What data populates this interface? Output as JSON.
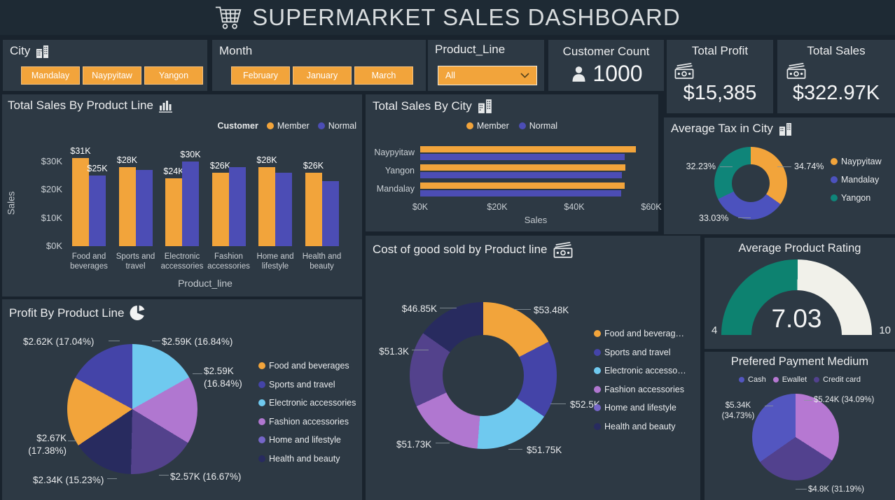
{
  "header": {
    "title": "SUPERMARKET SALES DASHBOARD",
    "icon": "shopping-cart-icon"
  },
  "filters": {
    "city": {
      "title": "City",
      "icon": "buildings-icon",
      "options": [
        "Mandalay",
        "Naypyitaw",
        "Yangon"
      ]
    },
    "month": {
      "title": "Month",
      "options": [
        "February",
        "January",
        "March"
      ]
    },
    "product_line": {
      "title": "Product_Line",
      "selected": "All"
    },
    "customer_count": {
      "title": "Customer Count",
      "icon": "person-icon",
      "value": "1000"
    },
    "total_profit": {
      "title": "Total Profit",
      "icon": "money-icon",
      "value": "$15,385"
    },
    "total_sales": {
      "title": "Total Sales",
      "icon": "money-icon",
      "value": "$322.97K"
    }
  },
  "colors": {
    "page_bg": "#19232D",
    "header_bg": "#1E2A34",
    "panel_bg": "#2D3944",
    "accent": "#F2A43B",
    "member": "#F2A43B",
    "normal": "#4C4DB5",
    "food": "#F2A43B",
    "sports": "#4444A8",
    "electronic": "#6FC9EF",
    "fashion": "#B077D0",
    "home": "#53428C",
    "home_legend": "#7566C8",
    "health": "#282B5F",
    "teal": "#0F8579",
    "tax_purple": "#4C52BE",
    "gauge_fill": "#0D8270",
    "gauge_rest": "#F1F1EA",
    "cash": "#5356C0",
    "ewallet": "#B678D2",
    "credit": "#52418E"
  },
  "chart_data": [
    {
      "id": "sales_by_product_line",
      "type": "bar",
      "title": "Total Sales By Product Line",
      "icon": "bar-chart-icon",
      "legend_title": "Customer",
      "legend_position": "top-right",
      "categories": [
        "Food and beverages",
        "Sports and travel",
        "Electronic accessories",
        "Fashion accessories",
        "Home and lifestyle",
        "Health and beauty"
      ],
      "series": [
        {
          "name": "Member",
          "color": "member",
          "values": [
            31,
            28,
            24,
            26,
            28,
            26
          ],
          "labels": [
            "$31K",
            "$28K",
            "$24K",
            "$26K",
            "$28K",
            "$26K"
          ]
        },
        {
          "name": "Normal",
          "color": "normal",
          "values": [
            25,
            27,
            30,
            28,
            26,
            23
          ],
          "labels": [
            "$25K",
            null,
            "$30K",
            null,
            null,
            null
          ]
        }
      ],
      "xlabel": "Product_line",
      "ylabel": "Sales",
      "yticks": [
        "$0K",
        "$10K",
        "$20K",
        "$30K"
      ],
      "ylim": [
        0,
        35
      ],
      "grid": false
    },
    {
      "id": "sales_by_city",
      "type": "bar-horizontal",
      "title": "Total Sales By City",
      "icon": "buildings-icon",
      "legend_position": "top-center",
      "categories": [
        "Naypyitaw",
        "Yangon",
        "Mandalay"
      ],
      "series": [
        {
          "name": "Member",
          "color": "member",
          "values": [
            56.0,
            53.2,
            53.1
          ]
        },
        {
          "name": "Normal",
          "color": "normal",
          "values": [
            53.1,
            52.3,
            52.1
          ]
        }
      ],
      "xticks": [
        "$0K",
        "$20K",
        "$40K",
        "$60K"
      ],
      "xlim": [
        0,
        60
      ],
      "xlabel": "Sales",
      "grid": false
    },
    {
      "id": "avg_tax_in_city",
      "type": "donut",
      "title": "Average Tax in City",
      "icon": "buildings-icon",
      "slices": [
        {
          "label": "Naypyitaw",
          "value": 34.74,
          "text": "34.74%",
          "color": "member"
        },
        {
          "label": "Mandalay",
          "value": 33.03,
          "text": "33.03%",
          "color": "tax_purple"
        },
        {
          "label": "Yangon",
          "value": 32.23,
          "text": "32.23%",
          "color": "teal"
        }
      ],
      "legend": [
        {
          "label": "Naypyitaw",
          "color": "member"
        },
        {
          "label": "Mandalay",
          "color": "tax_purple"
        },
        {
          "label": "Yangon",
          "color": "teal"
        }
      ],
      "legend_position": "right"
    },
    {
      "id": "profit_by_product_line",
      "type": "pie",
      "title": "Profit By Product Line",
      "icon": "pie-chart-icon",
      "slices": [
        {
          "label": "Electronic accessories",
          "amount": "$2.59K",
          "value": 16.84,
          "text": "$2.59K (16.84%)",
          "color": "electronic"
        },
        {
          "label": "Fashion accessories",
          "amount": "$2.59K",
          "value": 16.84,
          "text": "$2.59K\n(16.84%)",
          "color": "fashion"
        },
        {
          "label": "Home and lifestyle",
          "amount": "$2.57K",
          "value": 16.67,
          "text": "$2.57K (16.67%)",
          "color": "home"
        },
        {
          "label": "Health and beauty",
          "amount": "$2.34K",
          "value": 15.23,
          "text": "$2.34K (15.23%)",
          "color": "health"
        },
        {
          "label": "Food and beverages",
          "amount": "$2.67K",
          "value": 17.38,
          "text": "$2.67K\n(17.38%)",
          "color": "food"
        },
        {
          "label": "Sports and travel",
          "amount": "$2.62K",
          "value": 17.04,
          "text": "$2.62K (17.04%)",
          "color": "sports"
        }
      ],
      "legend": [
        {
          "label": "Food and beverages",
          "color": "food"
        },
        {
          "label": "Sports and travel",
          "color": "sports"
        },
        {
          "label": "Electronic accessories",
          "color": "electronic"
        },
        {
          "label": "Fashion accessories",
          "color": "fashion"
        },
        {
          "label": "Home and lifestyle",
          "color": "home_legend"
        },
        {
          "label": "Health and beauty",
          "color": "health"
        }
      ],
      "legend_position": "right"
    },
    {
      "id": "cogs_by_product_line",
      "type": "donut",
      "title": "Cost of good sold by Product line",
      "icon": "money-icon",
      "slices": [
        {
          "label": "Food and beverages",
          "value": 53.48,
          "text": "$53.48K",
          "color": "food"
        },
        {
          "label": "Sports and travel",
          "value": 52.5,
          "text": "$52.5K",
          "color": "sports"
        },
        {
          "label": "Electronic accessories",
          "value": 51.75,
          "text": "$51.75K",
          "color": "electronic"
        },
        {
          "label": "Fashion accessories",
          "value": 51.73,
          "text": "$51.73K",
          "color": "fashion"
        },
        {
          "label": "Home and lifestyle",
          "value": 51.3,
          "text": "$51.3K",
          "color": "home"
        },
        {
          "label": "Health and beauty",
          "value": 46.85,
          "text": "$46.85K",
          "color": "health"
        }
      ],
      "legend": [
        {
          "label": "Food and beverag…",
          "color": "food"
        },
        {
          "label": "Sports and travel",
          "color": "sports"
        },
        {
          "label": "Electronic accesso…",
          "color": "electronic"
        },
        {
          "label": "Fashion accessories",
          "color": "fashion"
        },
        {
          "label": "Home and lifestyle",
          "color": "home_legend"
        },
        {
          "label": "Health and beauty",
          "color": "health"
        }
      ],
      "legend_position": "right"
    },
    {
      "id": "avg_product_rating",
      "type": "gauge",
      "title": "Average Product Rating",
      "min": 4,
      "max": 10,
      "value": 7.03,
      "min_text": "4",
      "max_text": "10",
      "value_text": "7.03"
    },
    {
      "id": "preferred_payment_medium",
      "type": "pie",
      "title": "Prefered Payment Medium",
      "slices": [
        {
          "label": "Ewallet",
          "amount": "$5.24K",
          "value": 34.09,
          "text": "$5.24K (34.09%)",
          "color": "ewallet"
        },
        {
          "label": "Credit card",
          "amount": "$4.8K",
          "value": 31.19,
          "text": "$4.8K (31.19%)",
          "color": "credit"
        },
        {
          "label": "Cash",
          "amount": "$5.34K",
          "value": 34.73,
          "text": "$5.34K\n(34.73%)",
          "color": "cash"
        }
      ],
      "legend": [
        {
          "label": "Cash",
          "color": "cash"
        },
        {
          "label": "Ewallet",
          "color": "ewallet"
        },
        {
          "label": "Credit card",
          "color": "credit"
        }
      ],
      "legend_position": "top-center"
    }
  ]
}
